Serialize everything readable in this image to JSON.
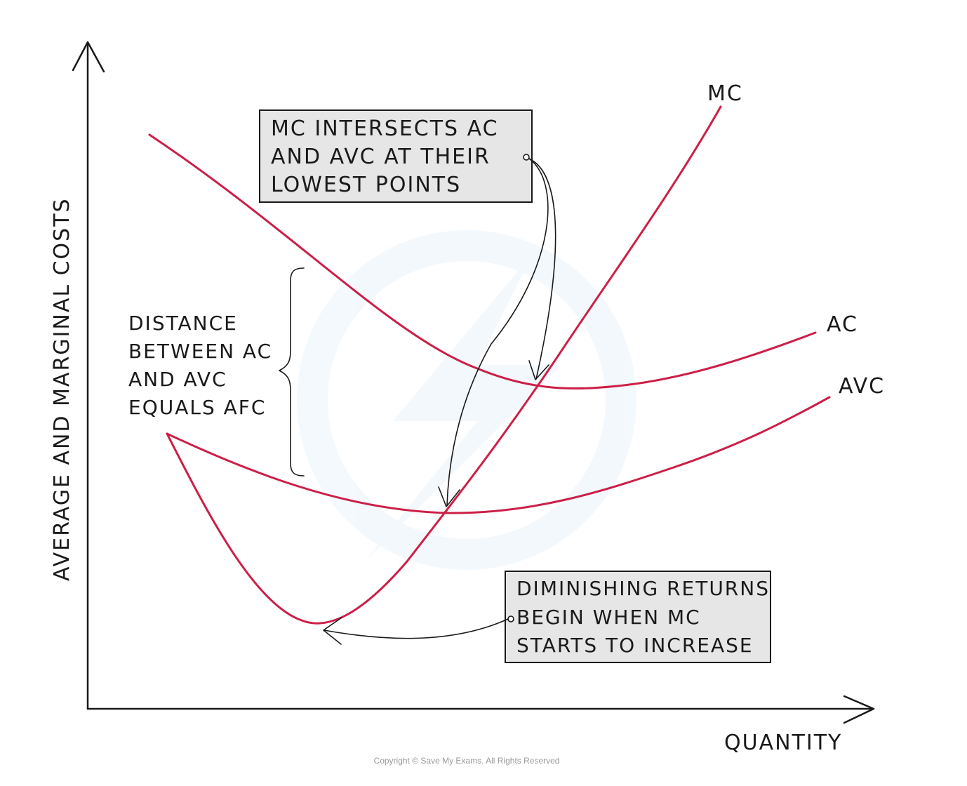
{
  "chart_data": {
    "type": "line",
    "xlabel": "QUANTITY",
    "ylabel": "AVERAGE AND MARGINAL COSTS",
    "series": [
      {
        "name": "MC"
      },
      {
        "name": "AC"
      },
      {
        "name": "AVC"
      }
    ],
    "annotations": {
      "intersect": [
        "MC INTERSECTS AC",
        "AND AVC AT THEIR",
        "LOWEST POINTS"
      ],
      "distance": [
        "DISTANCE",
        "BETWEEN AC",
        "AND AVC",
        "EQUALS AFC"
      ],
      "diminishing": [
        "DIMINISHING RETURNS",
        "BEGIN WHEN MC",
        "STARTS TO INCREASE"
      ]
    },
    "colors": {
      "curves": "#cc1f47",
      "ink": "#1a1a1a",
      "box_fill": "#e6e6e6"
    },
    "grid": false
  },
  "copyright": "Copyright © Save My Exams. All Rights Reserved"
}
